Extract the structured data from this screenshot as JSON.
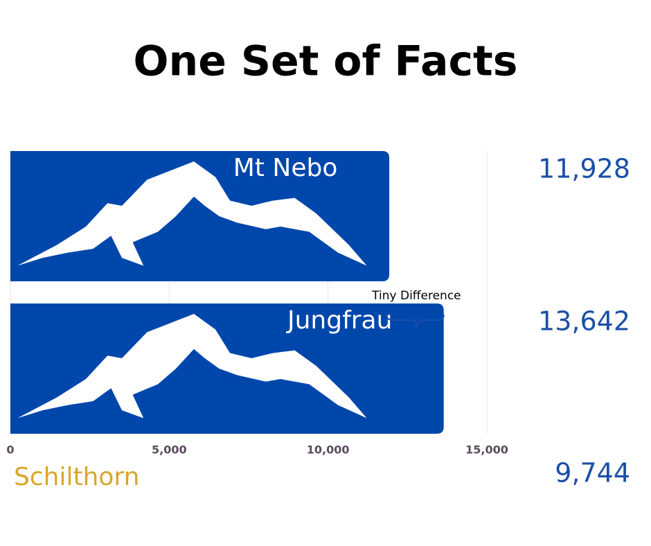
{
  "chart_data": {
    "type": "bar",
    "orientation": "horizontal",
    "title": "One Set of Facts",
    "categories": [
      "Mt Nebo",
      "Jungfrau"
    ],
    "values": [
      11928,
      13642
    ],
    "value_labels": [
      "11,928",
      "13,642"
    ],
    "color": "#0047ab",
    "label_color": "#1a4fa8",
    "xlim": [
      0,
      15000
    ],
    "xticks": [
      0,
      {
        "value": 5000,
        "label": "5,000"
      },
      {
        "value": 10000,
        "label": "10,000"
      },
      {
        "value": 15000,
        "label": "15,000"
      }
    ],
    "grid": true,
    "annotation": "Tiny Difference",
    "extra": {
      "name": "Schilthorn",
      "value": 9744,
      "value_label": "9,744",
      "color": "#d9a62b"
    }
  }
}
